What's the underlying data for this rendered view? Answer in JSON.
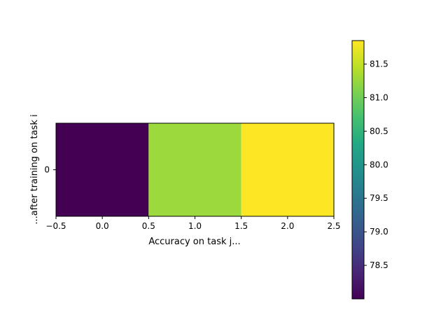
{
  "chart_data": {
    "type": "heatmap",
    "title": "",
    "xlabel": "Accuracy on task j...",
    "ylabel": "...after training on task i",
    "xlim": [
      -0.5,
      2.5
    ],
    "ylim": [
      0.5,
      -0.5
    ],
    "x_ticks": [
      -0.5,
      0.0,
      0.5,
      1.0,
      1.5,
      2.0,
      2.5
    ],
    "x_tick_labels": [
      "−0.5",
      "0.0",
      "0.5",
      "1.0",
      "1.5",
      "2.0",
      "2.5"
    ],
    "y_ticks": [
      0
    ],
    "y_tick_labels": [
      "0"
    ],
    "rows": [
      0
    ],
    "columns": [
      0,
      1,
      2
    ],
    "values": [
      [
        78.0,
        81.2,
        81.85
      ]
    ],
    "colormap": "viridis",
    "colorbar": {
      "vmin": 78.0,
      "vmax": 81.85,
      "ticks": [
        78.5,
        79.0,
        79.5,
        80.0,
        80.5,
        81.0,
        81.5
      ],
      "tick_labels": [
        "78.5",
        "79.0",
        "79.5",
        "80.0",
        "80.5",
        "81.0",
        "81.5"
      ]
    },
    "cell_colors": [
      "#440154",
      "#9bd93c",
      "#fde725"
    ],
    "grid": false,
    "legend": "none"
  }
}
